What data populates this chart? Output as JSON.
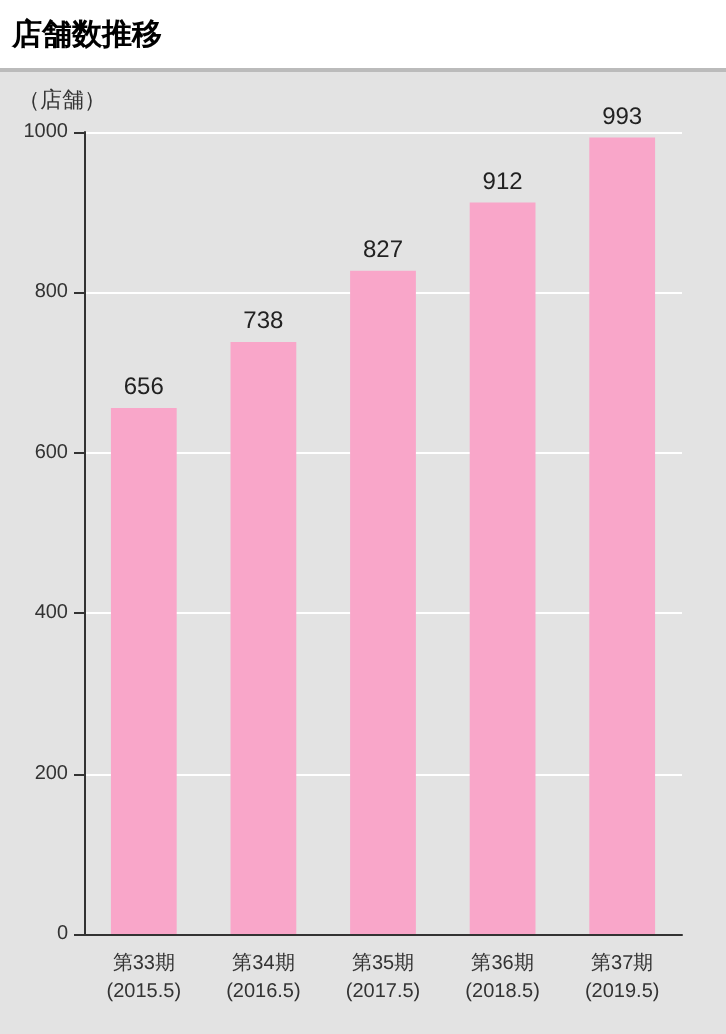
{
  "chart_data": {
    "type": "bar",
    "title": "店舗数推移",
    "ylabel": "（店舗）",
    "categories": [
      "第33期\n(2015.5)",
      "第34期\n(2016.5)",
      "第35期\n(2017.5)",
      "第36期\n(2018.5)",
      "第37期\n(2019.5)"
    ],
    "values": [
      656,
      738,
      827,
      912,
      993
    ],
    "color": "#f9a6c9",
    "ylim": [
      0,
      1000
    ],
    "yticks": [
      0,
      200,
      400,
      600,
      800,
      1000
    ],
    "grid": "y",
    "data_labels": true
  }
}
